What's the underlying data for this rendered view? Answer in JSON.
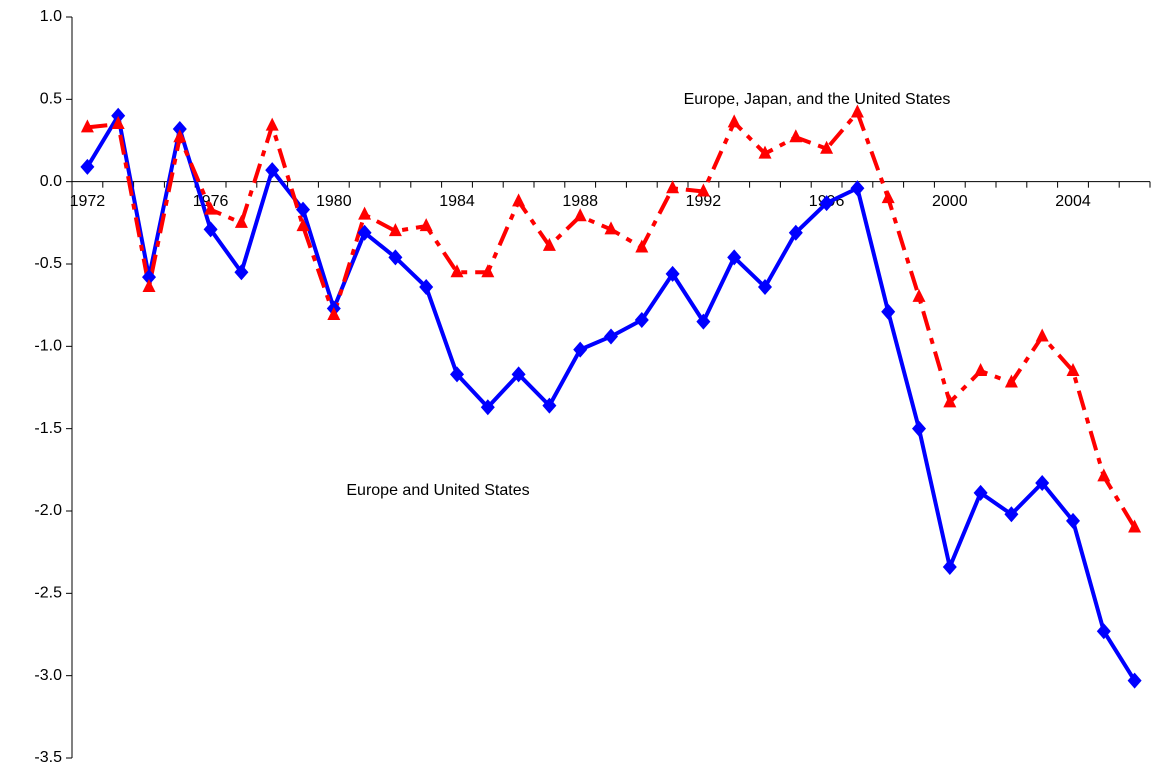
{
  "chart_data": {
    "type": "line",
    "x": [
      1972,
      1973,
      1974,
      1975,
      1976,
      1977,
      1978,
      1979,
      1980,
      1981,
      1982,
      1983,
      1984,
      1985,
      1986,
      1987,
      1988,
      1989,
      1990,
      1991,
      1992,
      1993,
      1994,
      1995,
      1996,
      1997,
      1998,
      1999,
      2000,
      2001,
      2002,
      2003,
      2004,
      2005,
      2006
    ],
    "series": [
      {
        "name": "Europe and United States",
        "color": "#0000ff",
        "marker": "diamond",
        "values": [
          0.09,
          0.4,
          -0.58,
          0.32,
          -0.29,
          -0.55,
          0.07,
          -0.17,
          -0.77,
          -0.31,
          -0.46,
          -0.64,
          -1.17,
          -1.37,
          -1.17,
          -1.36,
          -1.02,
          -0.94,
          -0.84,
          -0.56,
          -0.85,
          -0.46,
          -0.64,
          -0.31,
          -0.13,
          -0.04,
          -0.79,
          -1.5,
          -2.34,
          -1.89,
          -2.02,
          -1.83,
          -2.06,
          -2.73,
          -3.03
        ]
      },
      {
        "name": "Europe, Japan, and the United States",
        "color": "#ff0000",
        "marker": "triangle",
        "dashed": true,
        "values": [
          0.33,
          0.35,
          -0.64,
          0.27,
          -0.17,
          -0.25,
          0.34,
          -0.27,
          -0.81,
          -0.2,
          -0.3,
          -0.27,
          -0.55,
          -0.55,
          -0.12,
          -0.39,
          -0.21,
          -0.29,
          -0.4,
          -0.04,
          -0.06,
          0.36,
          0.17,
          0.27,
          0.2,
          0.42,
          -0.1,
          -0.7,
          -1.34,
          -1.15,
          -1.22,
          -0.94,
          -1.15,
          -1.79,
          -2.1
        ]
      }
    ],
    "xlim": [
      1971.5,
      2006.5
    ],
    "xticks": [
      1972,
      1976,
      1980,
      1984,
      1988,
      1992,
      1996,
      2000,
      2004
    ],
    "ylim": [
      -3.5,
      1.0
    ],
    "yticks": [
      {
        "value": -3.5,
        "label": "-3.5"
      },
      {
        "value": -3.0,
        "label": "-3.0"
      },
      -2.5,
      {
        "value": -2.0,
        "label": "-2.0"
      },
      -1.5,
      {
        "value": -1.0,
        "label": "-1.0"
      },
      -0.5,
      {
        "value": 0,
        "label": "0.0"
      },
      0.5,
      {
        "value": 1.0,
        "label": "1.0"
      }
    ],
    "grid": false
  }
}
